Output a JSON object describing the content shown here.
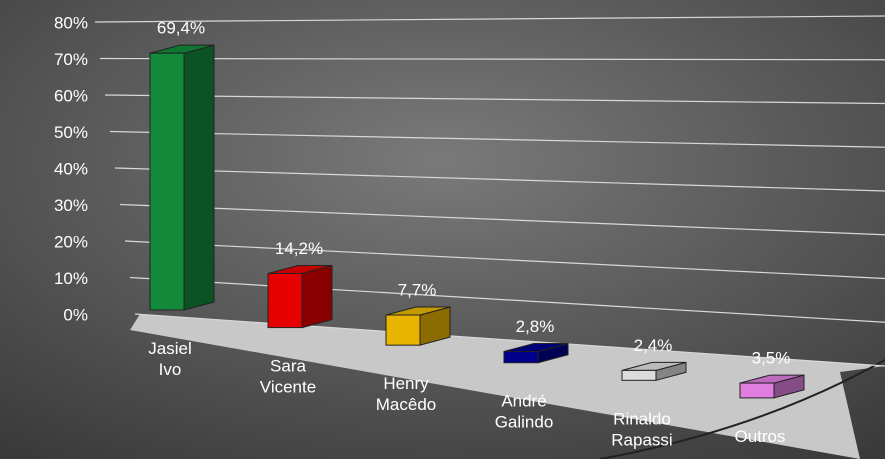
{
  "chart_data": {
    "type": "bar3d",
    "categories": [
      "Jasiel Ivo",
      "Sara Vicente",
      "Henry Macêdo",
      "André Galindo",
      "Rinaldo Rapassi",
      "Outros"
    ],
    "values": [
      69.4,
      14.2,
      7.7,
      2.8,
      2.4,
      3.5
    ],
    "value_labels": [
      "69,4%",
      "14,2%",
      "7,7%",
      "2,8%",
      "2,4%",
      "3,5%"
    ],
    "colors": [
      "#138a3a",
      "#e60000",
      "#e8b400",
      "#00008c",
      "#dcdcdc",
      "#e07ee0"
    ],
    "ylim": [
      0,
      80
    ],
    "yticks": [
      {
        "value": 0,
        "label": "0%"
      },
      {
        "value": 10,
        "label": "10%"
      },
      {
        "value": 20,
        "label": "20%"
      },
      {
        "value": 30,
        "label": "30%"
      },
      {
        "value": 40,
        "label": "40%"
      },
      {
        "value": 50,
        "label": "50%"
      },
      {
        "value": 60,
        "label": "60%"
      },
      {
        "value": 70,
        "label": "70%"
      },
      {
        "value": 80,
        "label": "80%"
      }
    ],
    "grid": true
  }
}
